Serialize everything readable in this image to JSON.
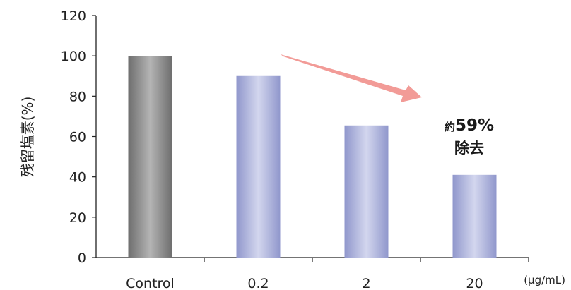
{
  "chart_data": {
    "type": "bar",
    "categories": [
      "Control",
      "0.2",
      "2",
      "20"
    ],
    "values": [
      100,
      90,
      65.5,
      41
    ],
    "ylabel": "残留塩素(%)",
    "xlabel": "",
    "x_unit": "(μg/mL)",
    "ylim": [
      0,
      120
    ],
    "yticks": [
      0,
      20,
      40,
      60,
      80,
      100,
      120
    ],
    "grid": false,
    "legend": "none",
    "colors": {
      "control": "#8a8a8a",
      "sample": "#a9afd8",
      "arrow": "#f08a85"
    },
    "annotation": {
      "line1_prefix": "約",
      "line1_value": "59%",
      "line2": "除去"
    }
  }
}
